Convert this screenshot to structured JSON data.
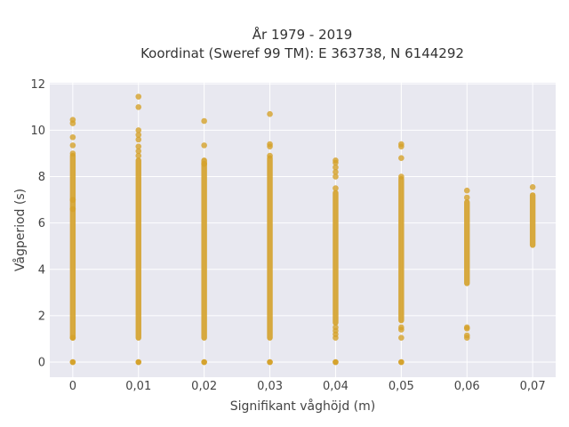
{
  "chart_data": {
    "type": "scatter",
    "title": [
      "År 1979 - 2019",
      "Koordinat (Sweref 99 TM): E 363738, N 6144292"
    ],
    "xlabel": "Signifikant våghöjd (m)",
    "ylabel": "Vågperiod (s)",
    "x_ticks": [
      "0",
      "0,01",
      "0,02",
      "0,03",
      "0,04",
      "0,05",
      "0,06",
      "0,07"
    ],
    "y_ticks": [
      "0",
      "2",
      "4",
      "6",
      "8",
      "10",
      "12"
    ],
    "xlim": [
      -0.0035,
      0.0735
    ],
    "ylim": [
      -0.65,
      12.05
    ],
    "grid": true,
    "marker_color": "#d4a12a",
    "background_color": "#e8e8f0",
    "columns": [
      {
        "x": 0.0,
        "ranges": [
          [
            1.05,
            8.9
          ],
          [
            0.0,
            0.0
          ]
        ],
        "points": [
          9.0,
          9.35,
          9.7,
          10.3,
          10.45,
          0.0,
          1.05,
          7.0,
          6.6
        ]
      },
      {
        "x": 0.01,
        "ranges": [
          [
            1.05,
            8.7
          ],
          [
            0.0,
            0.0
          ]
        ],
        "points": [
          8.9,
          9.1,
          9.3,
          9.6,
          9.8,
          10.0,
          11.0,
          11.45,
          0.0
        ]
      },
      {
        "x": 0.02,
        "ranges": [
          [
            1.05,
            8.7
          ],
          [
            0.0,
            0.0
          ]
        ],
        "points": [
          8.55,
          9.35,
          10.4,
          0.0
        ]
      },
      {
        "x": 0.03,
        "ranges": [
          [
            1.05,
            8.8
          ],
          [
            0.0,
            0.0
          ]
        ],
        "points": [
          8.9,
          9.3,
          9.4,
          10.7,
          0.0
        ]
      },
      {
        "x": 0.04,
        "ranges": [
          [
            1.7,
            7.3
          ],
          [
            0.0,
            0.0
          ]
        ],
        "points": [
          1.05,
          1.2,
          1.35,
          1.5,
          7.5,
          8.0,
          8.2,
          8.4,
          8.6,
          8.7,
          0.0
        ]
      },
      {
        "x": 0.05,
        "ranges": [
          [
            1.8,
            7.9
          ],
          [
            0.0,
            0.0
          ]
        ],
        "points": [
          1.05,
          1.4,
          1.5,
          8.0,
          8.8,
          9.3,
          9.4,
          0.0
        ]
      },
      {
        "x": 0.06,
        "ranges": [
          [
            3.4,
            6.9
          ]
        ],
        "points": [
          1.05,
          1.15,
          1.45,
          1.5,
          7.1,
          7.4
        ]
      },
      {
        "x": 0.07,
        "ranges": [
          [
            5.05,
            7.2
          ]
        ],
        "points": [
          7.55
        ]
      }
    ]
  }
}
